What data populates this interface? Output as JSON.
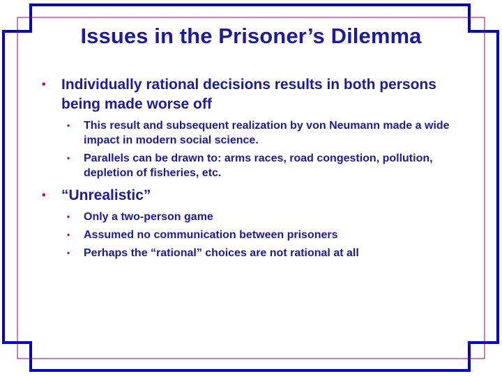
{
  "slide": {
    "title": "Issues in the Prisoner’s Dilemma",
    "bullet_glyph": "•",
    "colors": {
      "text": "#1a1aa6",
      "bullet": "#cc0066",
      "frame_outer": "#0000dd",
      "frame_inner": "#990066"
    },
    "points": [
      {
        "text": "Individually rational decisions results in both persons being made worse off",
        "subpoints": [
          "This result and subsequent realization by von Neumann made a wide impact in modern social science.",
          "Parallels can be drawn to: arms races, road congestion, pollution, depletion of fisheries, etc."
        ]
      },
      {
        "text": "“Unrealistic”",
        "subpoints": [
          "Only a two-person game",
          "Assumed no communication between prisoners",
          "Perhaps the “rational” choices are not rational at all"
        ]
      }
    ]
  }
}
